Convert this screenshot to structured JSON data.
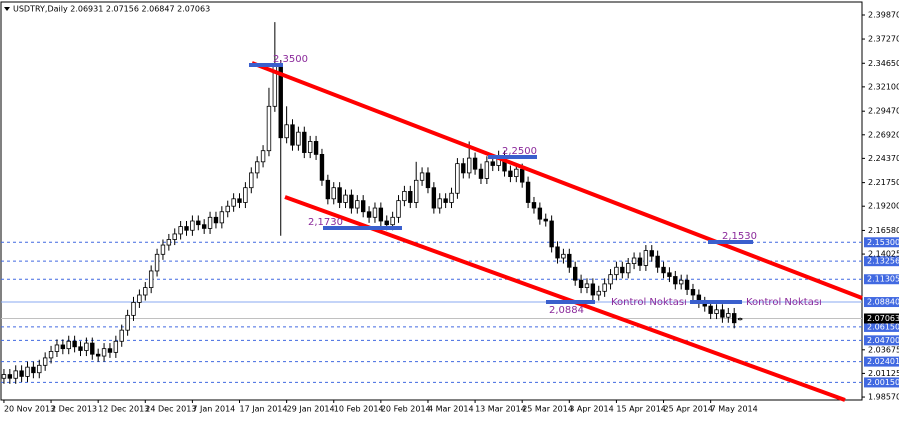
{
  "chart_data": {
    "type": "candlestick",
    "title": "USDTRY,Daily  2.06931 2.07156 2.06847 2.07063",
    "xlim": [
      -0.5,
      145.7
    ],
    "xticks": [
      {
        "value": 0,
        "label": "20 Nov 2013"
      },
      {
        "value": 8,
        "label": "2 Dec 2013"
      },
      {
        "value": 16,
        "label": "12 Dec 2013"
      },
      {
        "value": 24,
        "label": "24 Dec 2013"
      },
      {
        "value": 32,
        "label": "7 Jan 2014"
      },
      {
        "value": 40,
        "label": "17 Jan 2014"
      },
      {
        "value": 48,
        "label": "29 Jan 2014"
      },
      {
        "value": 56,
        "label": "10 Feb 2014"
      },
      {
        "value": 64,
        "label": "20 Feb 2014"
      },
      {
        "value": 72,
        "label": "4 Mar 2014"
      },
      {
        "value": 80,
        "label": "13 Mar 2014"
      },
      {
        "value": 88,
        "label": "25 Mar 2014"
      },
      {
        "value": 96,
        "label": "3 Apr 2014"
      },
      {
        "value": 104,
        "label": "15 Apr 2014"
      },
      {
        "value": 112,
        "label": "25 Apr 2014"
      },
      {
        "value": 120,
        "label": "7 May 2014"
      }
    ],
    "ylim": [
      1.9825,
      2.4095
    ],
    "yticks": [
      {
        "value": 2.3987,
        "label": "2.39870"
      },
      {
        "value": 2.3727,
        "label": "2.37270"
      },
      {
        "value": 2.3465,
        "label": "2.34650"
      },
      {
        "value": 2.321,
        "label": "2.32100"
      },
      {
        "value": 2.2947,
        "label": "2.29470"
      },
      {
        "value": 2.2692,
        "label": "2.26920"
      },
      {
        "value": 2.2437,
        "label": "2.24370"
      },
      {
        "value": 2.2175,
        "label": "2.21750"
      },
      {
        "value": 2.192,
        "label": "2.19200"
      },
      {
        "value": 2.1658,
        "label": "2.16580"
      },
      {
        "value": 2.14025,
        "label": "2.14025"
      },
      {
        "value": 2.03675,
        "label": "2.03675"
      },
      {
        "value": 2.01125,
        "label": "2.01125"
      },
      {
        "value": 1.9857,
        "label": "1.98570"
      }
    ],
    "candles": {
      "open": [
        2.006,
        2.01,
        2.006,
        2.014,
        2.008,
        2.018,
        2.012,
        2.02,
        2.028,
        2.035,
        2.042,
        2.038,
        2.046,
        2.04,
        2.036,
        2.044,
        2.032,
        2.03,
        2.038,
        2.034,
        2.046,
        2.058,
        2.074,
        2.088,
        2.096,
        2.104,
        2.122,
        2.14,
        2.15,
        2.156,
        2.162,
        2.17,
        2.166,
        2.176,
        2.172,
        2.168,
        2.18,
        2.174,
        2.186,
        2.192,
        2.2,
        2.196,
        2.212,
        2.228,
        2.24,
        2.252,
        2.3,
        2.344,
        2.266,
        2.28,
        2.258,
        2.272,
        2.25,
        2.262,
        2.248,
        2.22,
        2.2,
        2.212,
        2.196,
        2.204,
        2.19,
        2.198,
        2.186,
        2.18,
        2.19,
        2.176,
        2.172,
        2.18,
        2.198,
        2.208,
        2.196,
        2.22,
        2.228,
        2.212,
        2.19,
        2.2,
        2.196,
        2.206,
        2.238,
        2.228,
        2.244,
        2.232,
        2.222,
        2.24,
        2.236,
        2.246,
        2.23,
        2.224,
        2.232,
        2.218,
        2.196,
        2.19,
        2.178,
        2.176,
        2.148,
        2.136,
        2.14,
        2.126,
        2.112,
        2.104,
        2.108,
        2.096,
        2.1,
        2.108,
        2.118,
        2.126,
        2.12,
        2.13,
        2.136,
        2.128,
        2.144,
        2.138,
        2.126,
        2.12,
        2.116,
        2.108,
        2.112,
        2.102,
        2.096,
        2.088,
        2.084,
        2.076,
        2.08,
        2.072,
        2.076,
        2.06931
      ],
      "high": [
        2.016,
        2.016,
        2.02,
        2.02,
        2.024,
        2.024,
        2.026,
        2.034,
        2.041,
        2.048,
        2.048,
        2.052,
        2.052,
        2.046,
        2.05,
        2.05,
        2.038,
        2.044,
        2.044,
        2.052,
        2.064,
        2.08,
        2.094,
        2.102,
        2.11,
        2.128,
        2.146,
        2.156,
        2.162,
        2.168,
        2.176,
        2.176,
        2.182,
        2.182,
        2.178,
        2.186,
        2.186,
        2.192,
        2.198,
        2.206,
        2.206,
        2.218,
        2.234,
        2.246,
        2.258,
        2.32,
        2.391,
        2.35,
        2.3,
        2.286,
        2.278,
        2.278,
        2.268,
        2.268,
        2.254,
        2.226,
        2.218,
        2.218,
        2.21,
        2.21,
        2.204,
        2.204,
        2.192,
        2.196,
        2.196,
        2.182,
        2.186,
        2.204,
        2.214,
        2.214,
        2.24,
        2.234,
        2.234,
        2.218,
        2.206,
        2.206,
        2.212,
        2.244,
        2.244,
        2.262,
        2.25,
        2.238,
        2.246,
        2.246,
        2.252,
        2.252,
        2.236,
        2.238,
        2.238,
        2.224,
        2.202,
        2.196,
        2.184,
        2.182,
        2.154,
        2.146,
        2.146,
        2.132,
        2.118,
        2.114,
        2.114,
        2.106,
        2.114,
        2.124,
        2.132,
        2.132,
        2.136,
        2.142,
        2.142,
        2.15,
        2.15,
        2.144,
        2.132,
        2.126,
        2.122,
        2.118,
        2.118,
        2.108,
        2.102,
        2.094,
        2.09,
        2.086,
        2.086,
        2.082,
        2.082,
        2.07156
      ],
      "low": [
        2.0,
        2.0,
        2.0,
        2.002,
        2.002,
        2.006,
        2.006,
        2.014,
        2.022,
        2.029,
        2.032,
        2.032,
        2.034,
        2.03,
        2.03,
        2.026,
        2.024,
        2.024,
        2.028,
        2.028,
        2.04,
        2.052,
        2.068,
        2.082,
        2.09,
        2.098,
        2.116,
        2.134,
        2.144,
        2.15,
        2.156,
        2.16,
        2.16,
        2.166,
        2.162,
        2.162,
        2.168,
        2.168,
        2.18,
        2.186,
        2.19,
        2.19,
        2.206,
        2.222,
        2.234,
        2.246,
        2.294,
        2.16,
        2.26,
        2.252,
        2.252,
        2.244,
        2.244,
        2.242,
        2.214,
        2.194,
        2.194,
        2.19,
        2.19,
        2.184,
        2.184,
        2.18,
        2.174,
        2.174,
        2.17,
        2.166,
        2.166,
        2.174,
        2.192,
        2.19,
        2.19,
        2.214,
        2.206,
        2.184,
        2.184,
        2.19,
        2.19,
        2.2,
        2.222,
        2.222,
        2.226,
        2.216,
        2.216,
        2.23,
        2.23,
        2.224,
        2.218,
        2.218,
        2.212,
        2.19,
        2.184,
        2.172,
        2.17,
        2.142,
        2.13,
        2.13,
        2.12,
        2.106,
        2.098,
        2.098,
        2.09,
        2.09,
        2.094,
        2.102,
        2.112,
        2.114,
        2.114,
        2.124,
        2.122,
        2.122,
        2.132,
        2.12,
        2.114,
        2.11,
        2.102,
        2.102,
        2.096,
        2.09,
        2.082,
        2.078,
        2.07,
        2.07,
        2.066,
        2.066,
        2.06,
        2.06847
      ],
      "close": [
        2.01,
        2.006,
        2.014,
        2.008,
        2.018,
        2.012,
        2.02,
        2.028,
        2.035,
        2.042,
        2.038,
        2.046,
        2.04,
        2.036,
        2.044,
        2.032,
        2.03,
        2.038,
        2.034,
        2.046,
        2.058,
        2.074,
        2.088,
        2.096,
        2.104,
        2.122,
        2.14,
        2.15,
        2.156,
        2.162,
        2.17,
        2.166,
        2.176,
        2.172,
        2.168,
        2.18,
        2.174,
        2.186,
        2.192,
        2.2,
        2.196,
        2.212,
        2.228,
        2.24,
        2.252,
        2.3,
        2.344,
        2.266,
        2.28,
        2.258,
        2.272,
        2.25,
        2.262,
        2.248,
        2.22,
        2.2,
        2.212,
        2.196,
        2.204,
        2.19,
        2.198,
        2.186,
        2.18,
        2.19,
        2.176,
        2.172,
        2.18,
        2.198,
        2.208,
        2.196,
        2.22,
        2.228,
        2.212,
        2.19,
        2.2,
        2.196,
        2.206,
        2.238,
        2.228,
        2.244,
        2.232,
        2.222,
        2.24,
        2.236,
        2.246,
        2.23,
        2.224,
        2.232,
        2.218,
        2.196,
        2.19,
        2.178,
        2.176,
        2.148,
        2.136,
        2.14,
        2.126,
        2.112,
        2.104,
        2.108,
        2.096,
        2.1,
        2.108,
        2.118,
        2.126,
        2.12,
        2.13,
        2.136,
        2.128,
        2.144,
        2.138,
        2.126,
        2.12,
        2.116,
        2.108,
        2.112,
        2.102,
        2.096,
        2.088,
        2.084,
        2.076,
        2.08,
        2.072,
        2.076,
        2.066,
        2.07063
      ]
    },
    "bull_color": "#ffffff",
    "bear_color": "#000000",
    "levels": [
      {
        "value": 2.153,
        "label": "2.15300",
        "style": "dashed"
      },
      {
        "value": 2.13256,
        "label": "2.13256",
        "style": "dashed"
      },
      {
        "value": 2.11305,
        "label": "2.11305",
        "style": "dashed"
      },
      {
        "value": 2.0884,
        "label": "2.08840",
        "style": "solid"
      },
      {
        "value": 2.0615,
        "label": "2.06150",
        "style": "dashed"
      },
      {
        "value": 2.047,
        "label": "2.04700",
        "style": "dashed"
      },
      {
        "value": 2.02401,
        "label": "2.02401",
        "style": "dashed"
      },
      {
        "value": 2.0015,
        "label": "2.00150",
        "style": "dashed"
      }
    ],
    "level_color": "#4169e1",
    "current_price": {
      "value": 2.07063,
      "label": "2.07063"
    },
    "annotations": [
      "2,3500",
      "2,1730",
      "2,2500",
      "2,1530",
      "2,0884",
      "Kontrol Noktası",
      "Kontrol Noktası"
    ]
  }
}
